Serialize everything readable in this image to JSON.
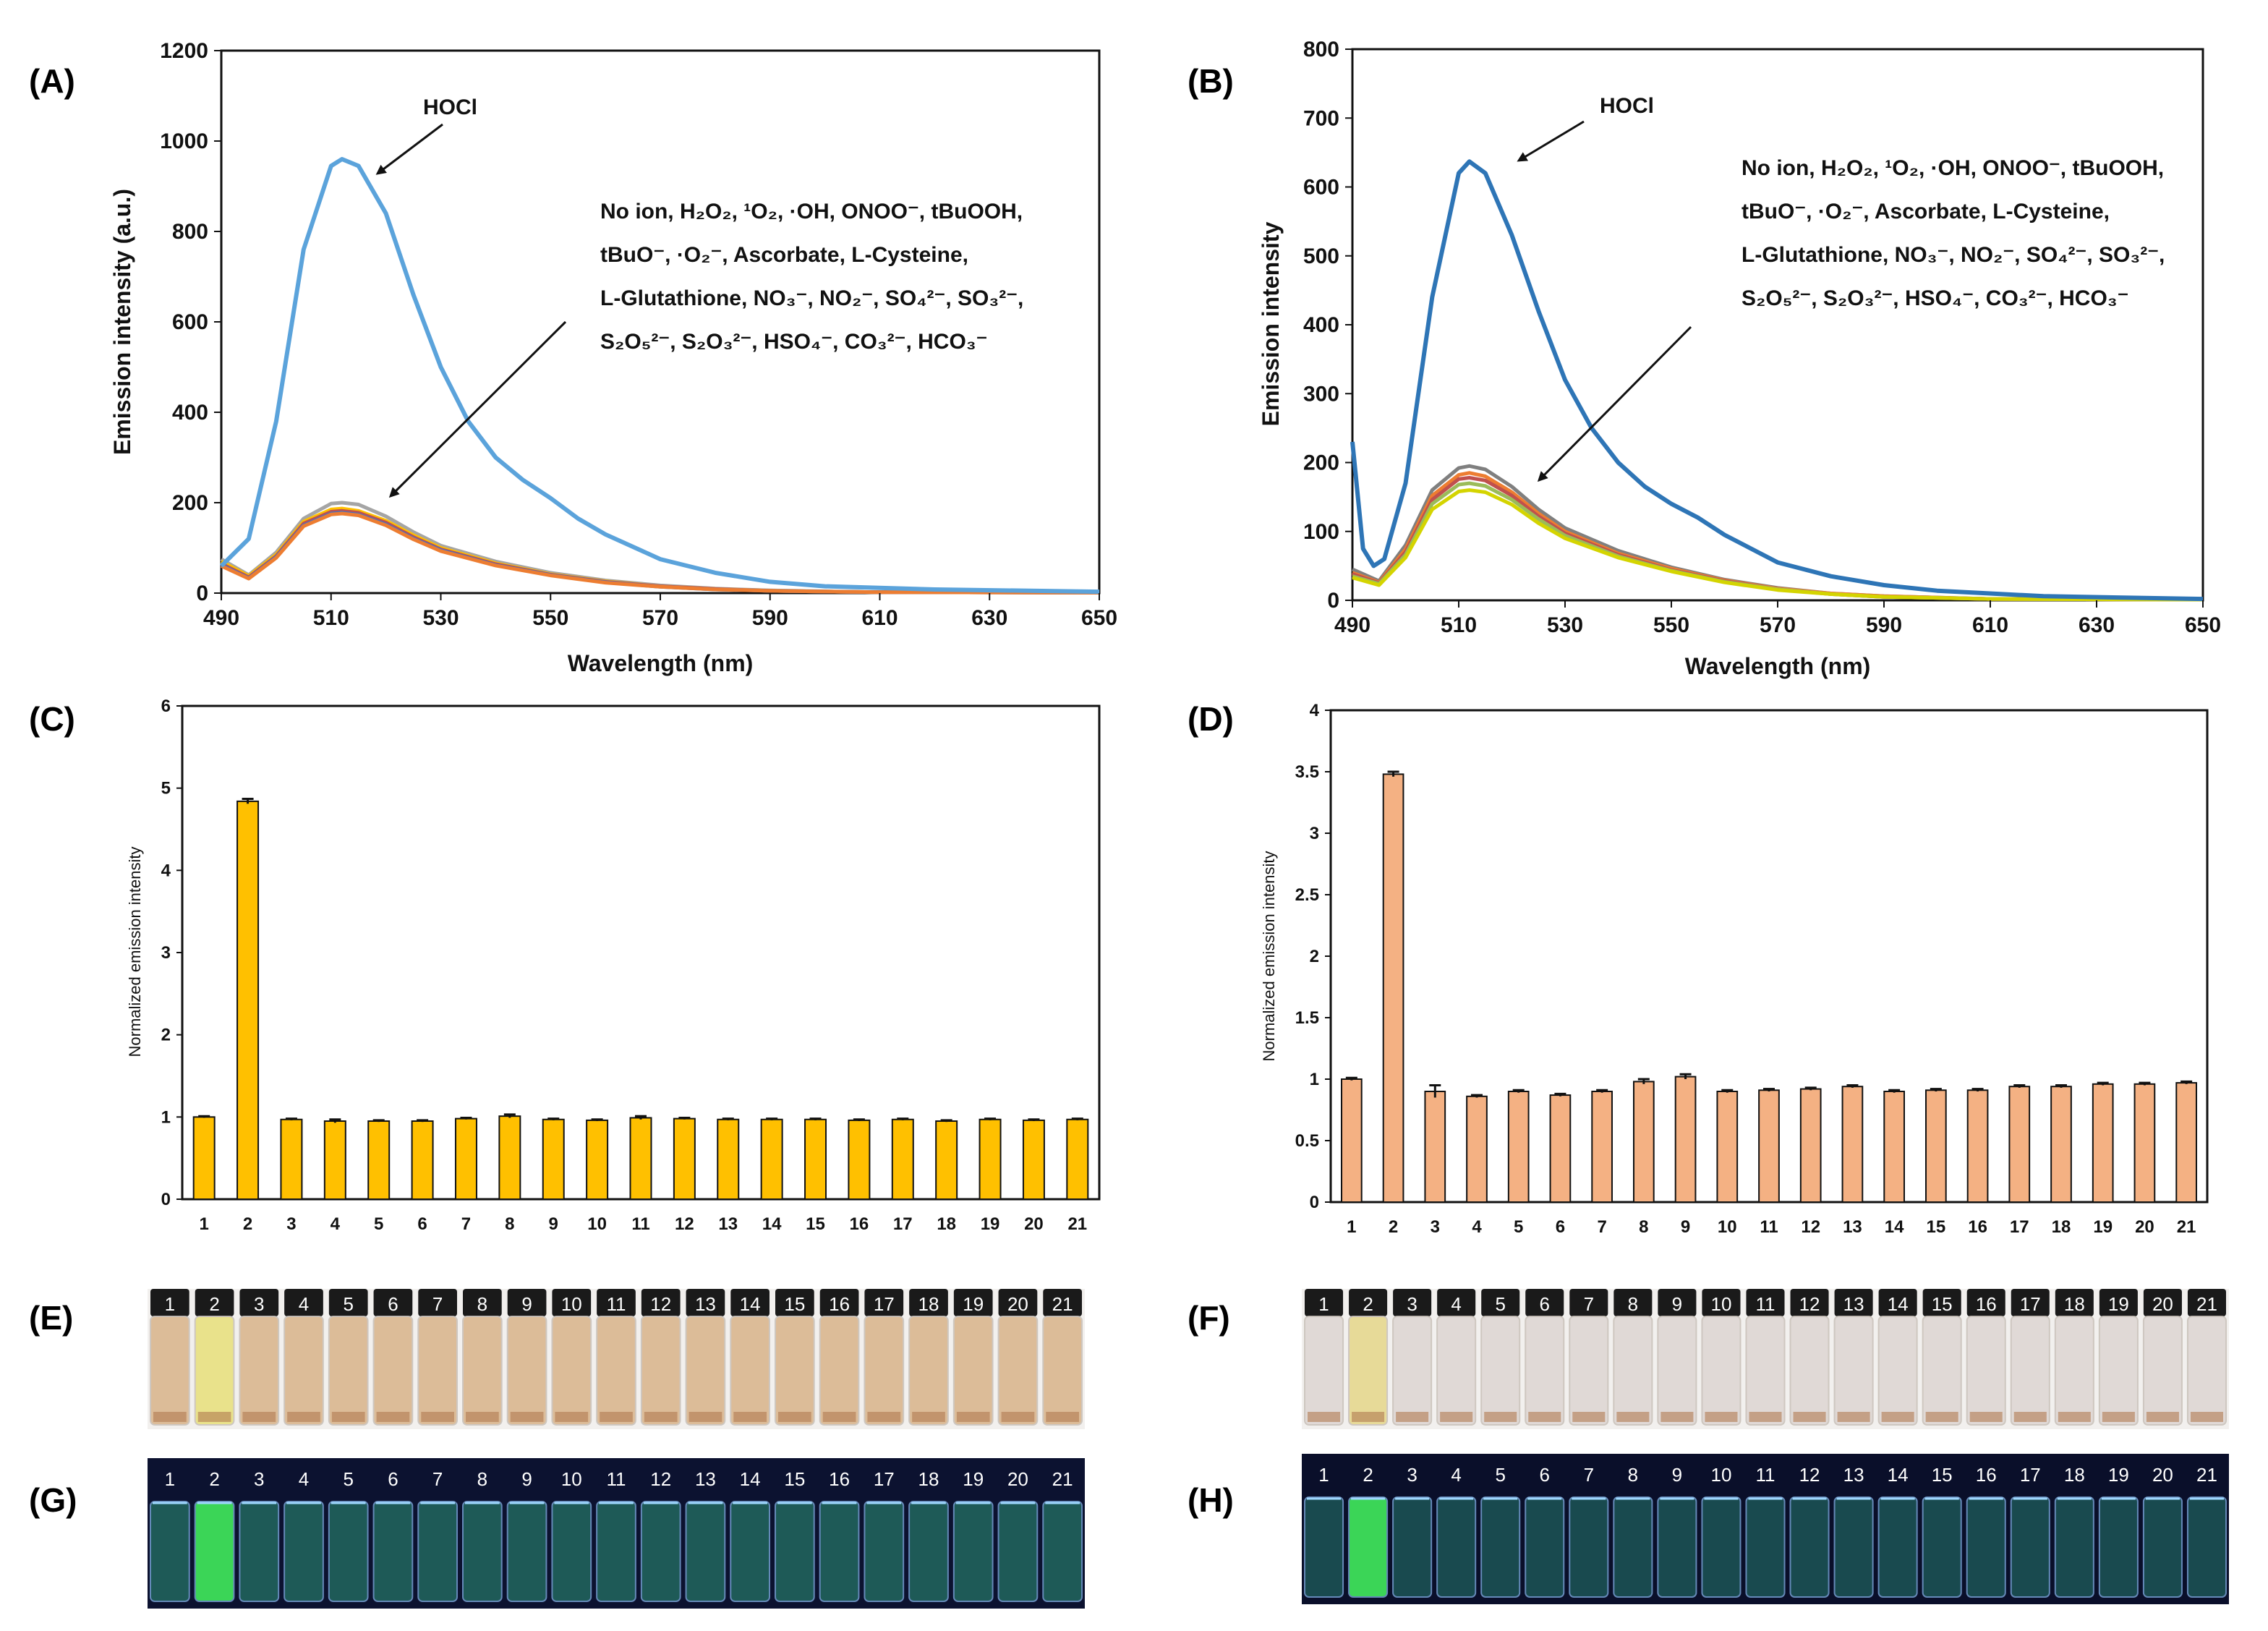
{
  "panels": [
    {
      "id": "A",
      "label": "(A)"
    },
    {
      "id": "B",
      "label": "(B)"
    },
    {
      "id": "C",
      "label": "(C)"
    },
    {
      "id": "D",
      "label": "(D)"
    },
    {
      "id": "E",
      "label": "(E)"
    },
    {
      "id": "F",
      "label": "(F)"
    },
    {
      "id": "G",
      "label": "(G)"
    },
    {
      "id": "H",
      "label": "(H)"
    }
  ],
  "chart_data": [
    {
      "panel": "A",
      "type": "line",
      "xlabel": "Wavelength (nm)",
      "ylabel": "Emission intensity (a.u.)",
      "xlim": [
        490,
        650
      ],
      "ylim": [
        0,
        1200
      ],
      "xticks": [
        490,
        510,
        530,
        550,
        570,
        590,
        610,
        630,
        650
      ],
      "yticks": [
        0,
        200,
        400,
        600,
        800,
        1000,
        1200
      ],
      "annotations": {
        "hocl": "HOCl",
        "others_lines": [
          "No ion, H₂O₂, ¹O₂, ·OH, ONOO⁻, tBuOOH,",
          "tBuO⁻, ·O₂⁻, Ascorbate, L-Cysteine,",
          "L-Glutathione, NO₃⁻, NO₂⁻, SO₄²⁻, SO₃²⁻,",
          "S₂O₅²⁻, S₂O₃²⁻, HSO₄⁻, CO₃²⁻, HCO₃⁻"
        ]
      },
      "series": [
        {
          "name": "HOCl",
          "color": "#5ba3db",
          "x": [
            490,
            495,
            500,
            505,
            510,
            512,
            515,
            520,
            525,
            530,
            535,
            540,
            545,
            550,
            555,
            560,
            570,
            580,
            590,
            600,
            620,
            650
          ],
          "y": [
            60,
            120,
            380,
            760,
            945,
            960,
            945,
            840,
            660,
            500,
            380,
            300,
            250,
            210,
            165,
            130,
            75,
            45,
            25,
            15,
            8,
            3
          ]
        },
        {
          "name": "others-1",
          "color": "#a5a5a5",
          "x": [
            490,
            495,
            500,
            505,
            510,
            512,
            515,
            520,
            525,
            530,
            540,
            550,
            560,
            570,
            580,
            590,
            610,
            650
          ],
          "y": [
            75,
            40,
            90,
            165,
            198,
            200,
            196,
            170,
            135,
            105,
            70,
            45,
            28,
            17,
            10,
            6,
            2,
            1
          ]
        },
        {
          "name": "others-2",
          "color": "#ffc000",
          "x": [
            490,
            495,
            500,
            505,
            510,
            512,
            515,
            520,
            525,
            530,
            540,
            550,
            560,
            570,
            580,
            590,
            610,
            650
          ],
          "y": [
            70,
            38,
            85,
            158,
            185,
            187,
            182,
            160,
            128,
            100,
            66,
            42,
            26,
            15,
            9,
            5,
            2,
            1
          ]
        },
        {
          "name": "others-3",
          "color": "#c0504d",
          "x": [
            490,
            495,
            500,
            505,
            510,
            512,
            515,
            520,
            525,
            530,
            540,
            550,
            560,
            570,
            580,
            590,
            610,
            650
          ],
          "y": [
            65,
            35,
            82,
            154,
            180,
            182,
            178,
            156,
            124,
            97,
            64,
            41,
            25,
            15,
            9,
            5,
            2,
            1
          ]
        },
        {
          "name": "others-4",
          "color": "#4472c4",
          "x": [
            490,
            495,
            500,
            505,
            510,
            512,
            515,
            520,
            525,
            530,
            540,
            550,
            560,
            570,
            580,
            590,
            610,
            650
          ],
          "y": [
            62,
            33,
            80,
            150,
            176,
            178,
            174,
            152,
            121,
            95,
            62,
            40,
            24,
            14,
            8,
            5,
            2,
            1
          ]
        },
        {
          "name": "others-5",
          "color": "#ed7d31",
          "x": [
            490,
            495,
            500,
            505,
            510,
            512,
            515,
            520,
            525,
            530,
            540,
            550,
            560,
            570,
            580,
            590,
            610,
            650
          ],
          "y": [
            60,
            32,
            78,
            148,
            174,
            176,
            172,
            150,
            119,
            93,
            61,
            39,
            23,
            14,
            8,
            5,
            2,
            1
          ]
        }
      ]
    },
    {
      "panel": "B",
      "type": "line",
      "xlabel": "Wavelength (nm)",
      "ylabel": "Emission intensity",
      "xlim": [
        490,
        650
      ],
      "ylim": [
        0,
        800
      ],
      "xticks": [
        490,
        510,
        530,
        550,
        570,
        590,
        610,
        630,
        650
      ],
      "yticks": [
        0,
        100,
        200,
        300,
        400,
        500,
        600,
        700,
        800
      ],
      "annotations": {
        "hocl": "HOCl",
        "others_lines": [
          "No ion, H₂O₂, ¹O₂, ·OH, ONOO⁻, tBuOOH,",
          "tBuO⁻, ·O₂⁻, Ascorbate, L-Cysteine,",
          "L-Glutathione, NO₃⁻, NO₂⁻, SO₄²⁻, SO₃²⁻,",
          "S₂O₅²⁻, S₂O₃²⁻, HSO₄⁻, CO₃²⁻, HCO₃⁻"
        ]
      },
      "series": [
        {
          "name": "HOCl",
          "color": "#2e75b6",
          "x": [
            490,
            492,
            494,
            496,
            500,
            505,
            510,
            512,
            515,
            520,
            525,
            530,
            535,
            540,
            545,
            550,
            555,
            560,
            570,
            580,
            590,
            600,
            620,
            650
          ],
          "y": [
            230,
            75,
            50,
            60,
            170,
            440,
            620,
            637,
            620,
            530,
            420,
            320,
            250,
            200,
            165,
            140,
            120,
            95,
            55,
            35,
            22,
            14,
            6,
            2
          ]
        },
        {
          "name": "others-1",
          "color": "#7f7f7f",
          "x": [
            490,
            495,
            500,
            505,
            510,
            512,
            515,
            520,
            525,
            530,
            540,
            550,
            560,
            570,
            580,
            590,
            610,
            650
          ],
          "y": [
            45,
            28,
            80,
            160,
            192,
            195,
            190,
            165,
            132,
            105,
            72,
            48,
            30,
            18,
            10,
            6,
            2,
            1
          ]
        },
        {
          "name": "others-2",
          "color": "#ed7d31",
          "x": [
            490,
            495,
            500,
            505,
            510,
            512,
            515,
            520,
            525,
            530,
            540,
            550,
            560,
            570,
            580,
            590,
            610,
            650
          ],
          "y": [
            40,
            26,
            74,
            152,
            182,
            185,
            180,
            157,
            126,
            100,
            68,
            46,
            29,
            17,
            10,
            6,
            2,
            1
          ]
        },
        {
          "name": "others-3",
          "color": "#c0504d",
          "x": [
            490,
            495,
            500,
            505,
            510,
            512,
            515,
            520,
            525,
            530,
            540,
            550,
            560,
            570,
            580,
            590,
            610,
            650
          ],
          "y": [
            38,
            25,
            70,
            146,
            176,
            178,
            174,
            152,
            122,
            97,
            66,
            44,
            28,
            16,
            9,
            5,
            2,
            1
          ]
        },
        {
          "name": "others-4",
          "color": "#9bbb59",
          "x": [
            490,
            495,
            500,
            505,
            510,
            512,
            515,
            520,
            525,
            530,
            540,
            550,
            560,
            570,
            580,
            590,
            610,
            650
          ],
          "y": [
            35,
            24,
            66,
            140,
            168,
            170,
            166,
            146,
            118,
            94,
            64,
            43,
            27,
            16,
            9,
            5,
            2,
            1
          ]
        },
        {
          "name": "others-5",
          "color": "#d4d400",
          "x": [
            490,
            495,
            500,
            505,
            510,
            512,
            515,
            520,
            525,
            530,
            540,
            550,
            560,
            570,
            580,
            590,
            610,
            650
          ],
          "y": [
            33,
            22,
            62,
            132,
            158,
            160,
            157,
            139,
            112,
            90,
            62,
            42,
            26,
            15,
            9,
            5,
            2,
            1
          ]
        }
      ]
    },
    {
      "panel": "C",
      "type": "bar",
      "ylabel": "Normalized emission intensity",
      "xlabel": "",
      "ylim": [
        0,
        6
      ],
      "yticks": [
        0,
        1,
        2,
        3,
        4,
        5,
        6
      ],
      "categories": [
        "1",
        "2",
        "3",
        "4",
        "5",
        "6",
        "7",
        "8",
        "9",
        "10",
        "11",
        "12",
        "13",
        "14",
        "15",
        "16",
        "17",
        "18",
        "19",
        "20",
        "21"
      ],
      "values": [
        1.0,
        4.84,
        0.97,
        0.95,
        0.95,
        0.95,
        0.98,
        1.01,
        0.97,
        0.96,
        0.99,
        0.98,
        0.97,
        0.97,
        0.97,
        0.96,
        0.97,
        0.95,
        0.97,
        0.96,
        0.97
      ],
      "errors": [
        0.01,
        0.03,
        0.01,
        0.02,
        0.01,
        0.01,
        0.01,
        0.02,
        0.01,
        0.01,
        0.02,
        0.01,
        0.01,
        0.01,
        0.01,
        0.01,
        0.01,
        0.01,
        0.01,
        0.01,
        0.01
      ],
      "color": "#ffc000"
    },
    {
      "panel": "D",
      "type": "bar",
      "ylabel": "Normalized emission intensity",
      "xlabel": "",
      "ylim": [
        0,
        4
      ],
      "yticks": [
        0,
        0.5,
        1,
        1.5,
        2,
        2.5,
        3,
        3.5,
        4
      ],
      "categories": [
        "1",
        "2",
        "3",
        "4",
        "5",
        "6",
        "7",
        "8",
        "9",
        "10",
        "11",
        "12",
        "13",
        "14",
        "15",
        "16",
        "17",
        "18",
        "19",
        "20",
        "21"
      ],
      "values": [
        1.0,
        3.48,
        0.9,
        0.86,
        0.9,
        0.87,
        0.9,
        0.98,
        1.02,
        0.9,
        0.91,
        0.92,
        0.94,
        0.9,
        0.91,
        0.91,
        0.94,
        0.94,
        0.96,
        0.96,
        0.97
      ],
      "errors": [
        0.01,
        0.02,
        0.05,
        0.01,
        0.01,
        0.01,
        0.01,
        0.02,
        0.02,
        0.01,
        0.01,
        0.01,
        0.01,
        0.01,
        0.01,
        0.01,
        0.01,
        0.01,
        0.01,
        0.01,
        0.01
      ],
      "color": "#f4b183"
    }
  ],
  "vials": {
    "numbers": [
      "1",
      "2",
      "3",
      "4",
      "5",
      "6",
      "7",
      "8",
      "9",
      "10",
      "11",
      "12",
      "13",
      "14",
      "15",
      "16",
      "17",
      "18",
      "19",
      "20",
      "21"
    ],
    "E": {
      "liquid": "#d9b48a",
      "highlight": "#e8e07a",
      "cap": "#1a1a1a"
    },
    "F": {
      "liquid": "#ddd6d2",
      "highlight": "#e6d78a",
      "cap": "#1a1a1a"
    },
    "G": {
      "liquid": "#1f5e5a",
      "highlight": "#3ee05a",
      "bg": "#0c1230"
    },
    "H": {
      "liquid": "#1a4e52",
      "highlight": "#3ee05a",
      "bg": "#0a0f2a"
    }
  }
}
